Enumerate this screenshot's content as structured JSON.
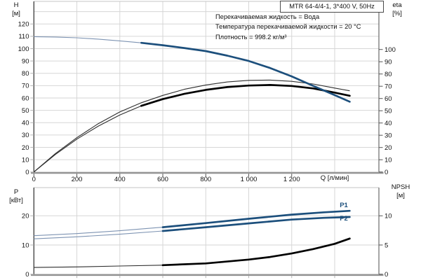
{
  "header": {
    "pump_model": "MTR 64-4/4-1, 3*400 V, 50Hz"
  },
  "info": {
    "line1": "Перекачиваемая жидкость = Вода",
    "line2": "Температура перекачиваемой жидкости = 20 °C",
    "line3": "Плотность = 998.2 кг/м³"
  },
  "axes": {
    "h_label": "H",
    "h_unit": "[м]",
    "eta_label": "eta",
    "eta_unit": "[%]",
    "p_label": "P",
    "p_unit": "[кВт]",
    "npsh_label": "NPSH",
    "npsh_unit": "[м]",
    "q_label": "Q [л/мин]"
  },
  "curve_labels": {
    "p1": "P1",
    "p2": "P2"
  },
  "colors": {
    "curve_blue": "#1c4f7c",
    "curve_blue_thin": "#7d93b2",
    "curve_black": "#000000",
    "curve_black_thin": "#2e2e2e",
    "grid": "#d6d6d6",
    "axis_dark": "#3c3c3c",
    "axis_gray": "#949494",
    "tick_gray": "#b4b4b4",
    "tick_dark": "#555555"
  },
  "chart_data": [
    {
      "type": "line",
      "title": "MTR 64-4/4-1, 3*400 V, 50Hz",
      "x": {
        "label": "Q [л/мин]",
        "min": 0,
        "max": 1600,
        "grid_step": 200,
        "tick_values": [
          0,
          200,
          400,
          600,
          800,
          1000,
          1200
        ],
        "tick_labels": [
          "0",
          "200",
          "400",
          "600",
          "800",
          "1 000",
          "1 200"
        ]
      },
      "y_left": {
        "label": "H [м]",
        "min": 0,
        "max": 138,
        "grid_step": 10,
        "tick_values": [
          0,
          10,
          20,
          30,
          40,
          50,
          60,
          70,
          80,
          90,
          100,
          110,
          120
        ]
      },
      "y_right": {
        "label": "eta [%]",
        "min": 0,
        "max": 100,
        "tick_values": [
          0,
          10,
          20,
          30,
          40,
          50,
          60,
          70,
          80,
          90,
          100
        ]
      },
      "series": [
        {
          "name": "eta1",
          "axis": "right",
          "style": "black",
          "bold_from": null,
          "points": [
            [
              0,
              0
            ],
            [
              100,
              15
            ],
            [
              200,
              28
            ],
            [
              300,
              39.5
            ],
            [
              400,
              49
            ],
            [
              500,
              56.5
            ],
            [
              600,
              62.5
            ],
            [
              700,
              67.5
            ],
            [
              800,
              71
            ],
            [
              900,
              73.5
            ],
            [
              1000,
              74.8
            ],
            [
              1100,
              75
            ],
            [
              1200,
              74
            ],
            [
              1300,
              71.8
            ],
            [
              1400,
              68.5
            ],
            [
              1470,
              66.3
            ]
          ]
        },
        {
          "name": "eta2",
          "axis": "right",
          "style": "black",
          "bold_from": 500,
          "points": [
            [
              0,
              0
            ],
            [
              100,
              14.3
            ],
            [
              200,
              26.8
            ],
            [
              300,
              37.5
            ],
            [
              400,
              46.5
            ],
            [
              500,
              54
            ],
            [
              600,
              59.5
            ],
            [
              700,
              63.8
            ],
            [
              800,
              67
            ],
            [
              900,
              69.3
            ],
            [
              1000,
              70.6
            ],
            [
              1100,
              71
            ],
            [
              1200,
              70.2
            ],
            [
              1300,
              68.2
            ],
            [
              1400,
              64.8
            ],
            [
              1470,
              62.2
            ]
          ]
        },
        {
          "name": "H",
          "axis": "left",
          "style": "blue",
          "bold_from": 500,
          "points": [
            [
              0,
              109.7
            ],
            [
              100,
              109.4
            ],
            [
              200,
              108.8
            ],
            [
              300,
              107.7
            ],
            [
              400,
              106.3
            ],
            [
              500,
              104.7
            ],
            [
              600,
              102.8
            ],
            [
              700,
              100.5
            ],
            [
              800,
              98
            ],
            [
              900,
              94.3
            ],
            [
              1000,
              90
            ],
            [
              1100,
              84.3
            ],
            [
              1200,
              77.5
            ],
            [
              1300,
              69.8
            ],
            [
              1400,
              62.3
            ],
            [
              1470,
              57
            ]
          ]
        }
      ]
    },
    {
      "type": "line",
      "x": {
        "shared_with_top_chart": true
      },
      "y_left": {
        "label": "P [кВт]",
        "min": 0,
        "max": 29.6,
        "tick_values": [
          0,
          10,
          20
        ]
      },
      "y_right": {
        "label": "NPSH [м]",
        "min": 0,
        "max": 14.8,
        "tick_values": [
          0,
          5,
          10
        ]
      },
      "series": [
        {
          "name": "NPSH",
          "axis": "right",
          "style": "black",
          "bold_from": 500,
          "points": [
            [
              0,
              1.15
            ],
            [
              200,
              1.25
            ],
            [
              400,
              1.4
            ],
            [
              600,
              1.55
            ],
            [
              800,
              1.85
            ],
            [
              1000,
              2.5
            ],
            [
              1100,
              2.95
            ],
            [
              1200,
              3.55
            ],
            [
              1300,
              4.3
            ],
            [
              1400,
              5.2
            ],
            [
              1470,
              6.1
            ]
          ]
        },
        {
          "name": "P2",
          "axis": "left",
          "style": "blue",
          "bold_from": 500,
          "points": [
            [
              0,
              12.1
            ],
            [
              200,
              12.8
            ],
            [
              400,
              13.7
            ],
            [
              600,
              14.8
            ],
            [
              800,
              16.1
            ],
            [
              1000,
              17.4
            ],
            [
              1200,
              18.7
            ],
            [
              1350,
              19.3
            ],
            [
              1470,
              19.6
            ]
          ]
        },
        {
          "name": "P1",
          "axis": "left",
          "style": "blue",
          "bold_from": 500,
          "points": [
            [
              0,
              13.2
            ],
            [
              200,
              13.9
            ],
            [
              400,
              14.9
            ],
            [
              600,
              16.1
            ],
            [
              800,
              17.5
            ],
            [
              1000,
              19
            ],
            [
              1200,
              20.4
            ],
            [
              1350,
              21.2
            ],
            [
              1470,
              21.7
            ]
          ]
        }
      ]
    }
  ]
}
